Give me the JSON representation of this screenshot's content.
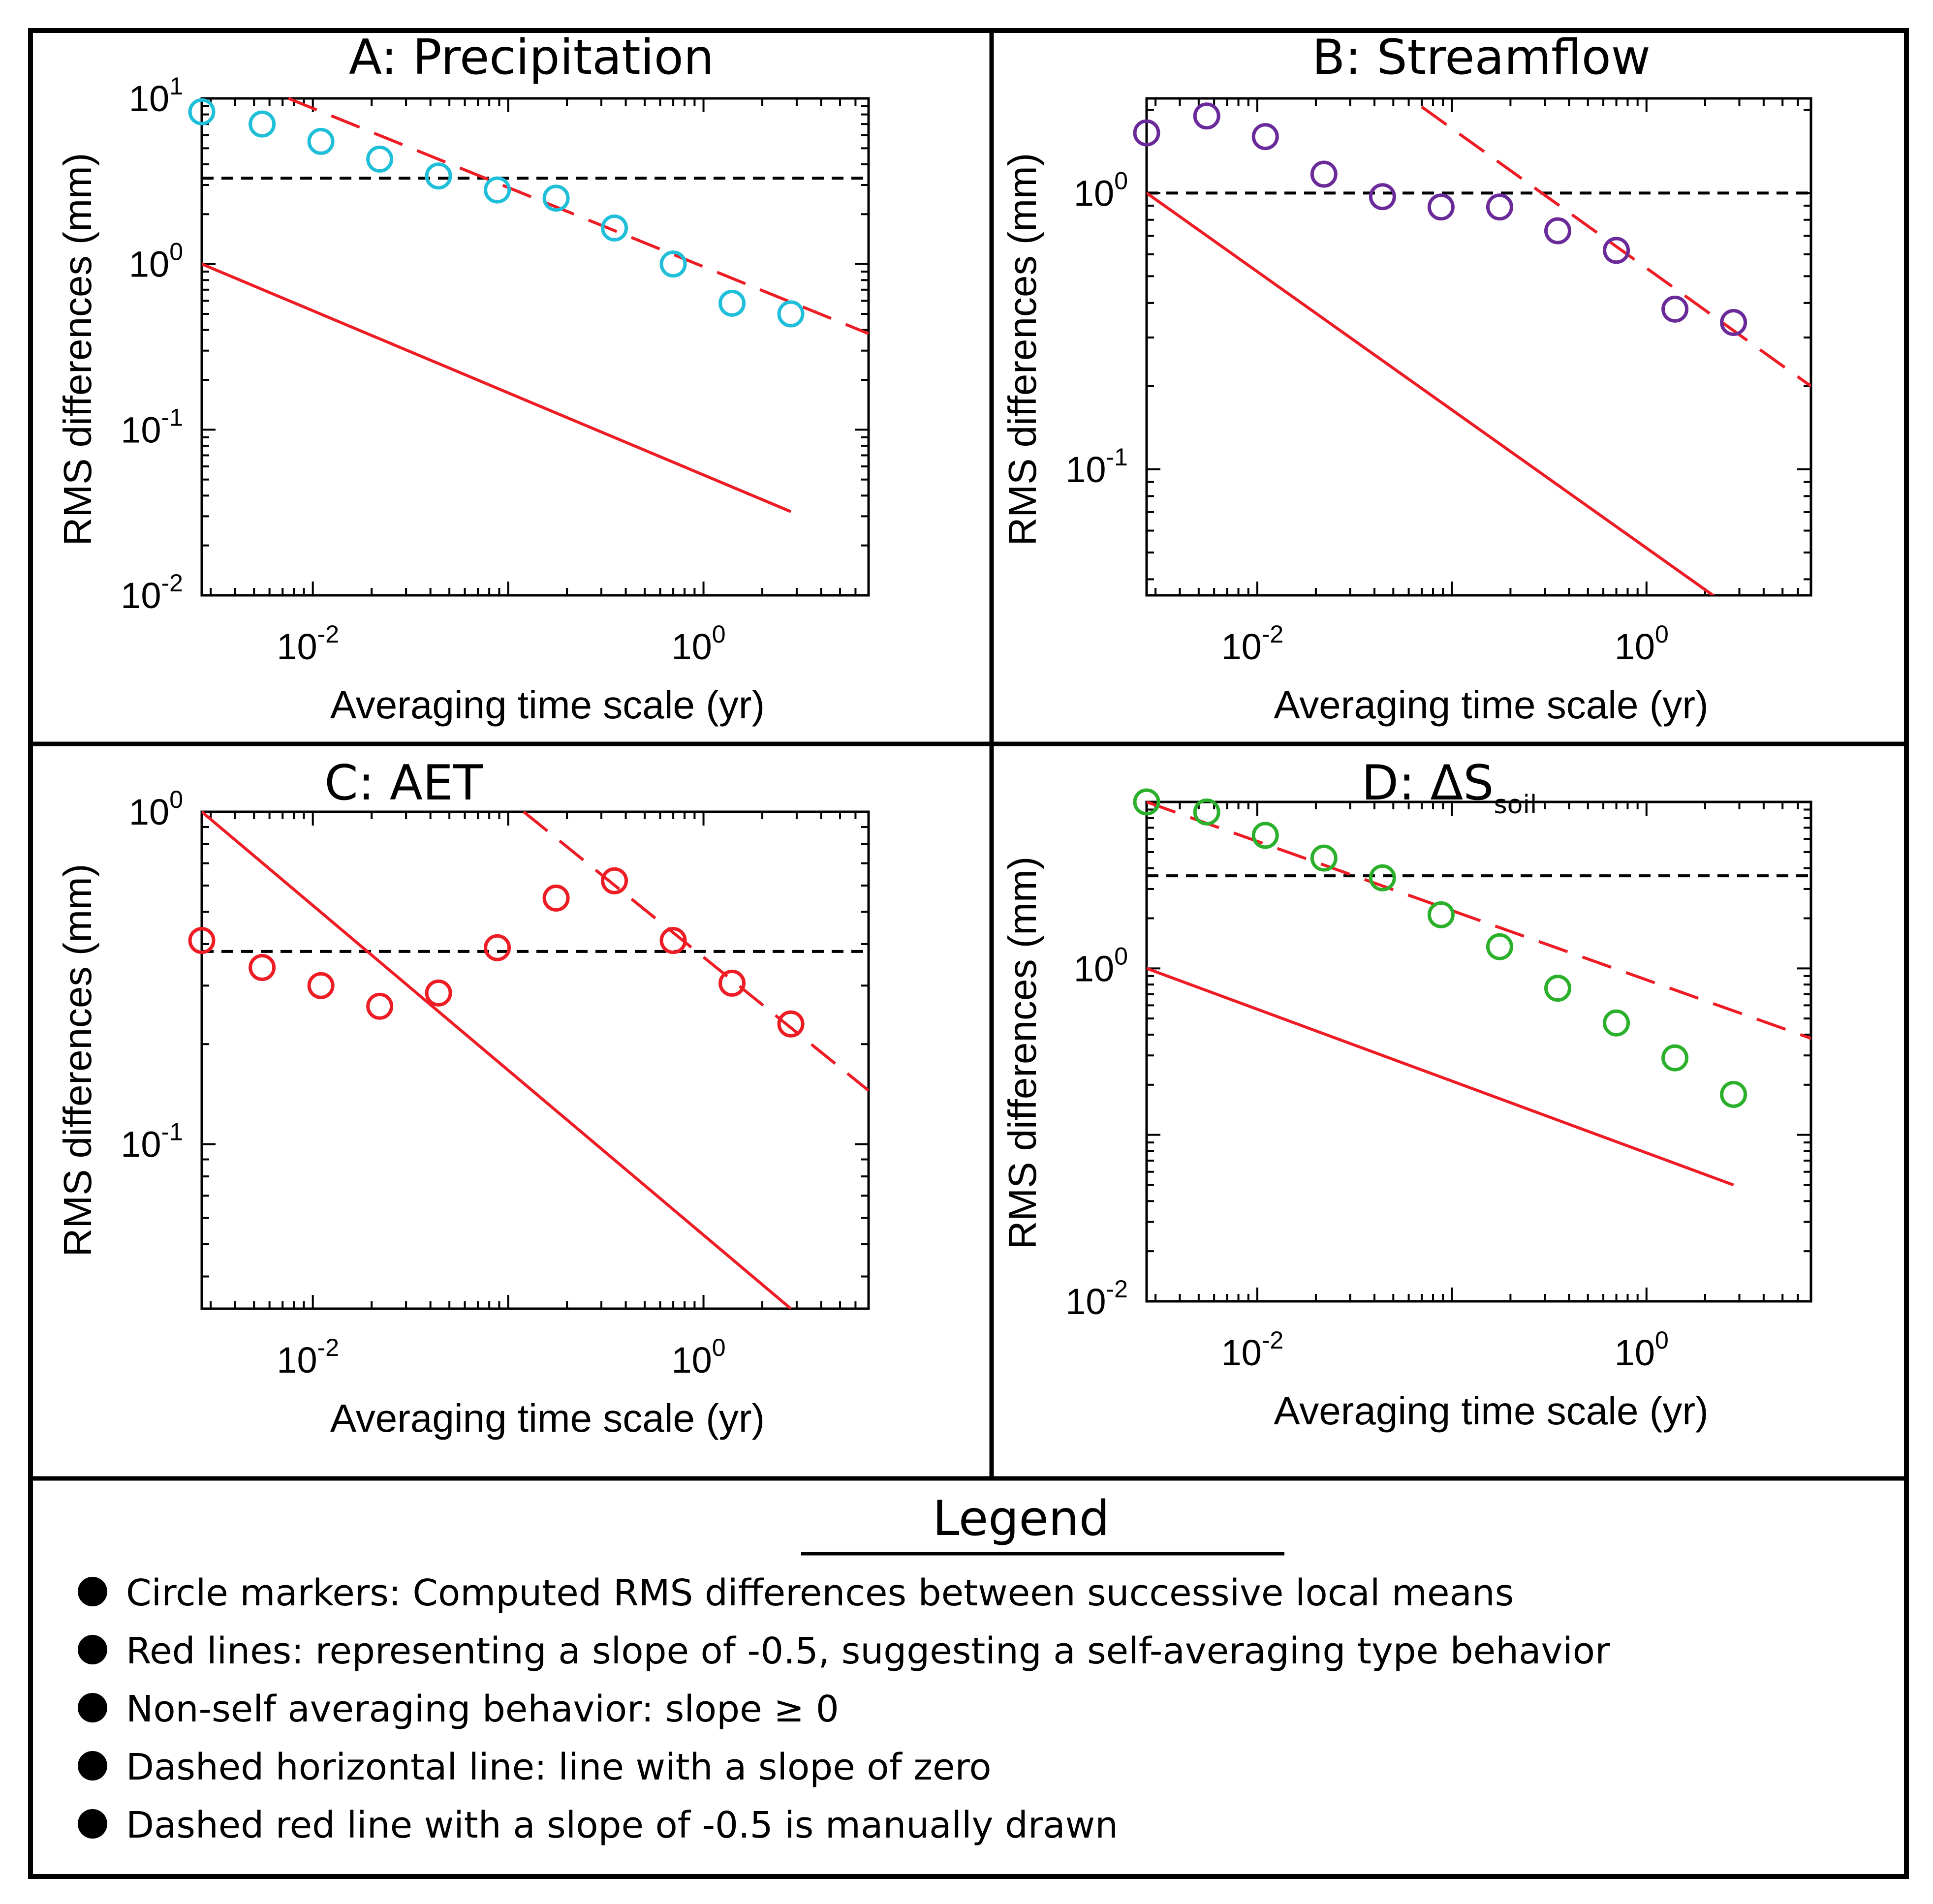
{
  "colors": {
    "precipitation": "#1fbfd9",
    "streamflow": "#6a2a9a",
    "aet": "#ee1c25",
    "soil": "#2bb02b",
    "red_line": "#ee1c25",
    "frame": "#000000",
    "dashed": "#000000"
  },
  "chart_data": [
    {
      "type": "scatter",
      "id": "A",
      "title": "A: Precipitation",
      "title_sub": "",
      "xlabel": "Averaging time scale (yr)",
      "ylabel": "RMS differences (mm)",
      "xscale": "log",
      "yscale": "log",
      "xlim": [
        0.0027,
        7.0
      ],
      "ylim": [
        0.01,
        10
      ],
      "xticks": [
        {
          "exp": "-2",
          "value": 0.01
        },
        {
          "exp": "0",
          "value": 1
        }
      ],
      "yticks": [
        {
          "exp": "-2",
          "value": 0.01
        },
        {
          "exp": "-1",
          "value": 0.1
        },
        {
          "exp": "0",
          "value": 1
        },
        {
          "exp": "1",
          "value": 10
        }
      ],
      "marker_color": "precipitation",
      "points": [
        {
          "x": 0.0027,
          "y": 8.3
        },
        {
          "x": 0.0055,
          "y": 7.0
        },
        {
          "x": 0.011,
          "y": 5.5
        },
        {
          "x": 0.022,
          "y": 4.3
        },
        {
          "x": 0.044,
          "y": 3.4
        },
        {
          "x": 0.088,
          "y": 2.8
        },
        {
          "x": 0.176,
          "y": 2.5
        },
        {
          "x": 0.35,
          "y": 1.65
        },
        {
          "x": 0.7,
          "y": 1.0
        },
        {
          "x": 1.4,
          "y": 0.58
        },
        {
          "x": 2.8,
          "y": 0.5
        }
      ],
      "solid_line": {
        "x": [
          0.0027,
          2.8
        ],
        "y": [
          1.0,
          0.032
        ]
      },
      "dashed_red_line": {
        "x": [
          0.0075,
          7.0
        ],
        "y": [
          10.0,
          0.38
        ]
      },
      "dashed_horizontal": {
        "y": 3.3
      }
    },
    {
      "type": "scatter",
      "id": "B",
      "title": "B: Streamflow",
      "title_sub": "",
      "xlabel": "Averaging time scale (yr)",
      "ylabel": "RMS differences (mm)",
      "xscale": "log",
      "yscale": "log",
      "xlim": [
        0.0027,
        7.0
      ],
      "ylim": [
        0.035,
        2.2
      ],
      "xticks": [
        {
          "exp": "-2",
          "value": 0.01
        },
        {
          "exp": "0",
          "value": 1
        }
      ],
      "yticks": [
        {
          "exp": "-1",
          "value": 0.1
        },
        {
          "exp": "0",
          "value": 1
        }
      ],
      "marker_color": "streamflow",
      "points": [
        {
          "x": 0.0027,
          "y": 1.65
        },
        {
          "x": 0.0055,
          "y": 1.9
        },
        {
          "x": 0.011,
          "y": 1.6
        },
        {
          "x": 0.022,
          "y": 1.17
        },
        {
          "x": 0.044,
          "y": 0.97
        },
        {
          "x": 0.088,
          "y": 0.89
        },
        {
          "x": 0.176,
          "y": 0.89
        },
        {
          "x": 0.35,
          "y": 0.73
        },
        {
          "x": 0.7,
          "y": 0.62
        },
        {
          "x": 1.4,
          "y": 0.38
        },
        {
          "x": 2.8,
          "y": 0.34
        }
      ],
      "solid_line": {
        "x": [
          0.0027,
          2.8
        ],
        "y": [
          1.0,
          0.031
        ]
      },
      "dashed_red_line": {
        "x": [
          0.07,
          7.0
        ],
        "y": [
          2.05,
          0.2
        ]
      },
      "dashed_horizontal": {
        "y": 1.0
      }
    },
    {
      "type": "scatter",
      "id": "C",
      "title": "C: AET",
      "title_sub": "",
      "xlabel": "Averaging time scale (yr)",
      "ylabel": "RMS differences (mm)",
      "xscale": "log",
      "yscale": "log",
      "xlim": [
        0.0027,
        7.0
      ],
      "ylim": [
        0.032,
        1.0
      ],
      "xticks": [
        {
          "exp": "-2",
          "value": 0.01
        },
        {
          "exp": "0",
          "value": 1
        }
      ],
      "yticks": [
        {
          "exp": "-1",
          "value": 0.1
        },
        {
          "exp": "0",
          "value": 1
        }
      ],
      "marker_color": "aet",
      "points": [
        {
          "x": 0.0027,
          "y": 0.41
        },
        {
          "x": 0.0055,
          "y": 0.34
        },
        {
          "x": 0.011,
          "y": 0.3
        },
        {
          "x": 0.022,
          "y": 0.26
        },
        {
          "x": 0.044,
          "y": 0.285
        },
        {
          "x": 0.088,
          "y": 0.39
        },
        {
          "x": 0.176,
          "y": 0.55
        },
        {
          "x": 0.35,
          "y": 0.62
        },
        {
          "x": 0.7,
          "y": 0.41
        },
        {
          "x": 1.4,
          "y": 0.305
        },
        {
          "x": 2.8,
          "y": 0.23
        }
      ],
      "solid_line": {
        "x": [
          0.0027,
          2.8
        ],
        "y": [
          1.0,
          0.032
        ]
      },
      "dashed_red_line": {
        "x": [
          0.12,
          7.0
        ],
        "y": [
          1.0,
          0.145
        ]
      },
      "dashed_horizontal": {
        "y": 0.38
      }
    },
    {
      "type": "scatter",
      "id": "D",
      "title": "D: ΔS",
      "title_sub": "soil",
      "xlabel": "Averaging time scale (yr)",
      "ylabel": "RMS differences (mm)",
      "xscale": "log",
      "yscale": "log",
      "xlim": [
        0.0027,
        7.0
      ],
      "ylim": [
        0.01,
        10
      ],
      "xticks": [
        {
          "exp": "-2",
          "value": 0.01
        },
        {
          "exp": "0",
          "value": 1
        }
      ],
      "yticks": [
        {
          "exp": "-2",
          "value": 0.01
        },
        {
          "exp": "0",
          "value": 1
        }
      ],
      "marker_color": "soil",
      "points": [
        {
          "x": 0.0027,
          "y": 10.0
        },
        {
          "x": 0.0055,
          "y": 8.7
        },
        {
          "x": 0.011,
          "y": 6.3
        },
        {
          "x": 0.022,
          "y": 4.6
        },
        {
          "x": 0.044,
          "y": 3.5
        },
        {
          "x": 0.088,
          "y": 2.1
        },
        {
          "x": 0.176,
          "y": 1.35
        },
        {
          "x": 0.35,
          "y": 0.76
        },
        {
          "x": 0.7,
          "y": 0.47
        },
        {
          "x": 1.4,
          "y": 0.29
        },
        {
          "x": 2.8,
          "y": 0.175
        }
      ],
      "solid_line": {
        "x": [
          0.0027,
          2.8
        ],
        "y": [
          1.0,
          0.05
        ]
      },
      "dashed_red_line": {
        "x": [
          0.0027,
          7.0
        ],
        "y": [
          10.0,
          0.38
        ]
      },
      "dashed_horizontal": {
        "y": 3.6
      }
    }
  ],
  "legend": {
    "title": "Legend",
    "items": [
      "Circle markers: Computed RMS differences between successive local means",
      "Red lines: representing a slope of -0.5, suggesting a self-averaging type behavior",
      "Non-self averaging behavior: slope ≥ 0",
      "Dashed horizontal line: line with a slope of zero",
      "Dashed red line with a slope of -0.5 is manually drawn"
    ]
  }
}
